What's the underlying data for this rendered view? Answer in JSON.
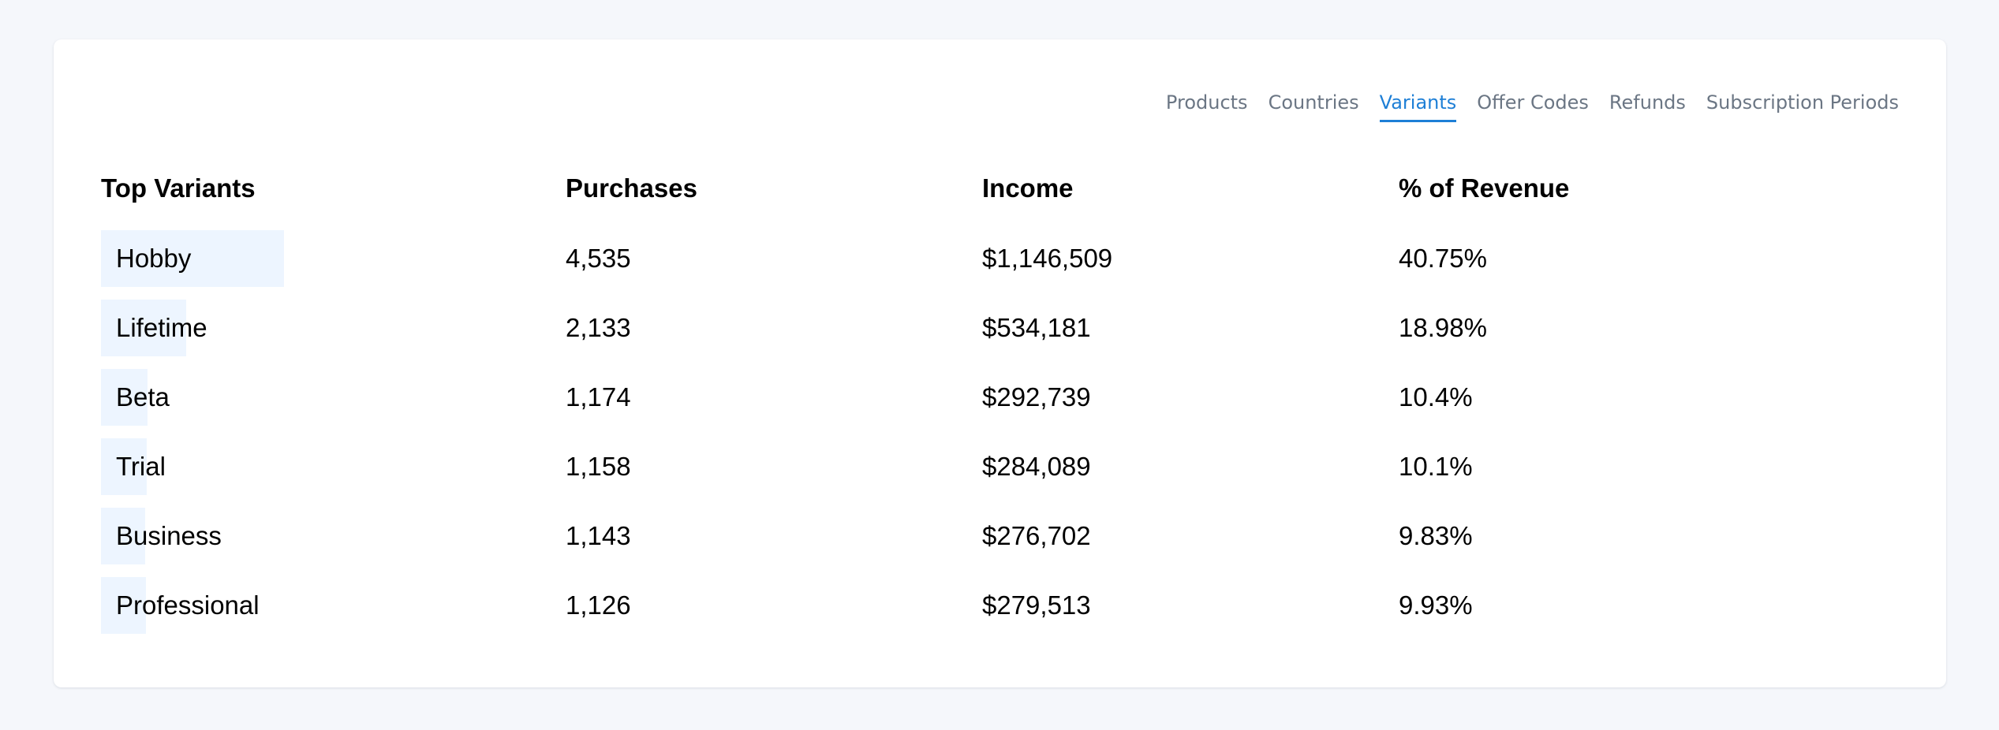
{
  "tabs": [
    {
      "label": "Products",
      "active": false
    },
    {
      "label": "Countries",
      "active": false
    },
    {
      "label": "Variants",
      "active": true
    },
    {
      "label": "Offer Codes",
      "active": false
    },
    {
      "label": "Refunds",
      "active": false
    },
    {
      "label": "Subscription Periods",
      "active": false
    }
  ],
  "table": {
    "headers": [
      "Top Variants",
      "Purchases",
      "Income",
      "% of Revenue"
    ],
    "rows": [
      {
        "name": "Hobby",
        "purchases": "4,535",
        "income": "$1,146,509",
        "revenue_pct": "40.75%",
        "share": 40.75
      },
      {
        "name": "Lifetime",
        "purchases": "2,133",
        "income": "$534,181",
        "revenue_pct": "18.98%",
        "share": 18.98
      },
      {
        "name": "Beta",
        "purchases": "1,174",
        "income": "$292,739",
        "revenue_pct": "10.4%",
        "share": 10.4
      },
      {
        "name": "Trial",
        "purchases": "1,158",
        "income": "$284,089",
        "revenue_pct": "10.1%",
        "share": 10.1
      },
      {
        "name": "Business",
        "purchases": "1,143",
        "income": "$276,702",
        "revenue_pct": "9.83%",
        "share": 9.83
      },
      {
        "name": "Professional",
        "purchases": "1,126",
        "income": "$279,513",
        "revenue_pct": "9.93%",
        "share": 9.93
      }
    ]
  },
  "colors": {
    "accent": "#1e7fd6",
    "tab_inactive": "#6b7684",
    "bar_fill": "#edf5ff",
    "page_background": "#f5f7fb"
  }
}
